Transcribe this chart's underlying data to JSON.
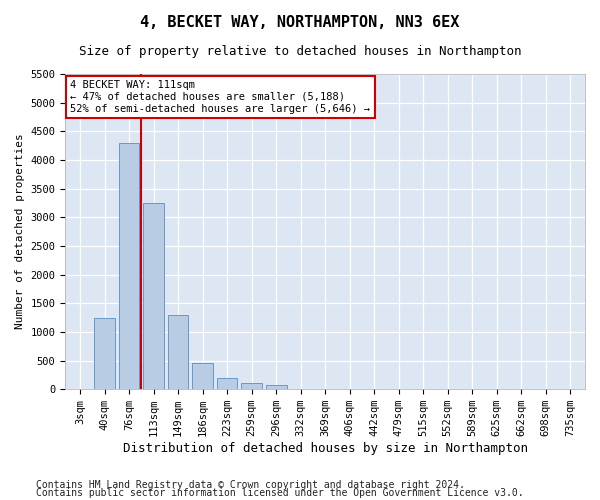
{
  "title": "4, BECKET WAY, NORTHAMPTON, NN3 6EX",
  "subtitle": "Size of property relative to detached houses in Northampton",
  "xlabel": "Distribution of detached houses by size in Northampton",
  "ylabel": "Number of detached properties",
  "footer_line1": "Contains HM Land Registry data © Crown copyright and database right 2024.",
  "footer_line2": "Contains public sector information licensed under the Open Government Licence v3.0.",
  "categories": [
    "3sqm",
    "40sqm",
    "76sqm",
    "113sqm",
    "149sqm",
    "186sqm",
    "223sqm",
    "259sqm",
    "296sqm",
    "332sqm",
    "369sqm",
    "406sqm",
    "442sqm",
    "479sqm",
    "515sqm",
    "552sqm",
    "589sqm",
    "625sqm",
    "662sqm",
    "698sqm",
    "735sqm"
  ],
  "values": [
    0,
    1250,
    4300,
    3250,
    1300,
    450,
    200,
    100,
    70,
    0,
    0,
    0,
    0,
    0,
    0,
    0,
    0,
    0,
    0,
    0,
    0
  ],
  "bar_color": "#b8cce4",
  "bar_edge_color": "#6699cc",
  "ylim_max": 5500,
  "yticks": [
    0,
    500,
    1000,
    1500,
    2000,
    2500,
    3000,
    3500,
    4000,
    4500,
    5000,
    5500
  ],
  "vline_x": 2.5,
  "vline_color": "#cc0000",
  "annotation_text": "4 BECKET WAY: 111sqm\n← 47% of detached houses are smaller (5,188)\n52% of semi-detached houses are larger (5,646) →",
  "annotation_box_facecolor": "#ffffff",
  "annotation_box_edgecolor": "#cc0000",
  "bg_color": "#dde6f3",
  "grid_color": "#ffffff",
  "title_fontsize": 11,
  "subtitle_fontsize": 9,
  "xlabel_fontsize": 9,
  "ylabel_fontsize": 8,
  "tick_fontsize": 7.5,
  "footer_fontsize": 7
}
